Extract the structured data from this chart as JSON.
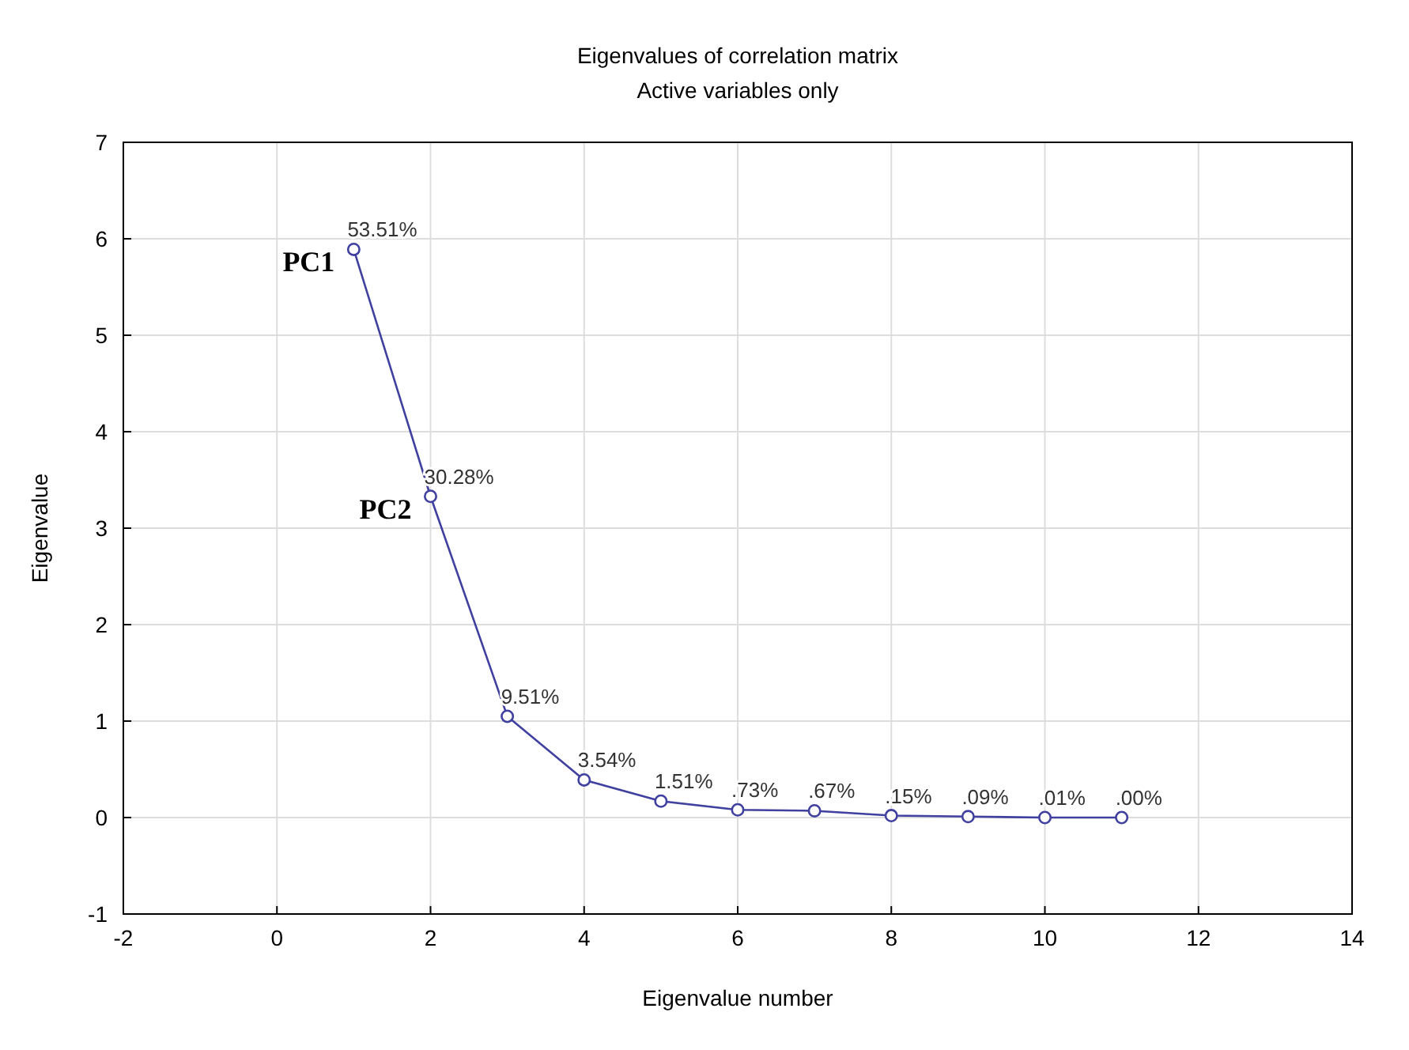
{
  "chart_data": {
    "type": "line",
    "title": "Eigenvalues of correlation matrix",
    "subtitle": "Active variables only",
    "xlabel": "Eigenvalue number",
    "ylabel": "Eigenvalue",
    "x": [
      1,
      2,
      3,
      4,
      5,
      6,
      7,
      8,
      9,
      10,
      11
    ],
    "series": [
      {
        "color": "#4040a0",
        "values": [
          5.89,
          3.33,
          1.05,
          0.39,
          0.17,
          0.08,
          0.07,
          0.02,
          0.01,
          0.0,
          0.0
        ]
      }
    ],
    "annotations": [
      {
        "text": "PC1",
        "x": 1,
        "y": 5.89
      },
      {
        "text": "PC2",
        "x": 2,
        "y": 3.33
      },
      {
        "text": "53.51%",
        "x": 1,
        "y": 5.89
      },
      {
        "text": "30.28%",
        "x": 2,
        "y": 3.33
      },
      {
        "text": "9.51%",
        "x": 3,
        "y": 1.05
      },
      {
        "text": "3.54%",
        "x": 4,
        "y": 0.39
      },
      {
        "text": "1.51%",
        "x": 5,
        "y": 0.17
      },
      {
        "text": ".73%",
        "x": 6,
        "y": 0.08
      },
      {
        "text": ".67%",
        "x": 7,
        "y": 0.07
      },
      {
        "text": ".15%",
        "x": 8,
        "y": 0.02
      },
      {
        "text": ".09%",
        "x": 9,
        "y": 0.01
      },
      {
        "text": ".01%",
        "x": 10,
        "y": 0.0
      },
      {
        "text": ".00%",
        "x": 11,
        "y": 0.0
      }
    ],
    "xlim": [
      -2,
      14
    ],
    "xticks": [
      -2,
      0,
      2,
      4,
      6,
      8,
      10,
      12,
      14
    ],
    "ylim": [
      -1,
      7
    ],
    "yticks": [
      -1,
      0,
      1,
      2,
      3,
      4,
      5,
      6,
      7
    ],
    "grid": true,
    "marker": "circle",
    "line_style": "solid"
  }
}
